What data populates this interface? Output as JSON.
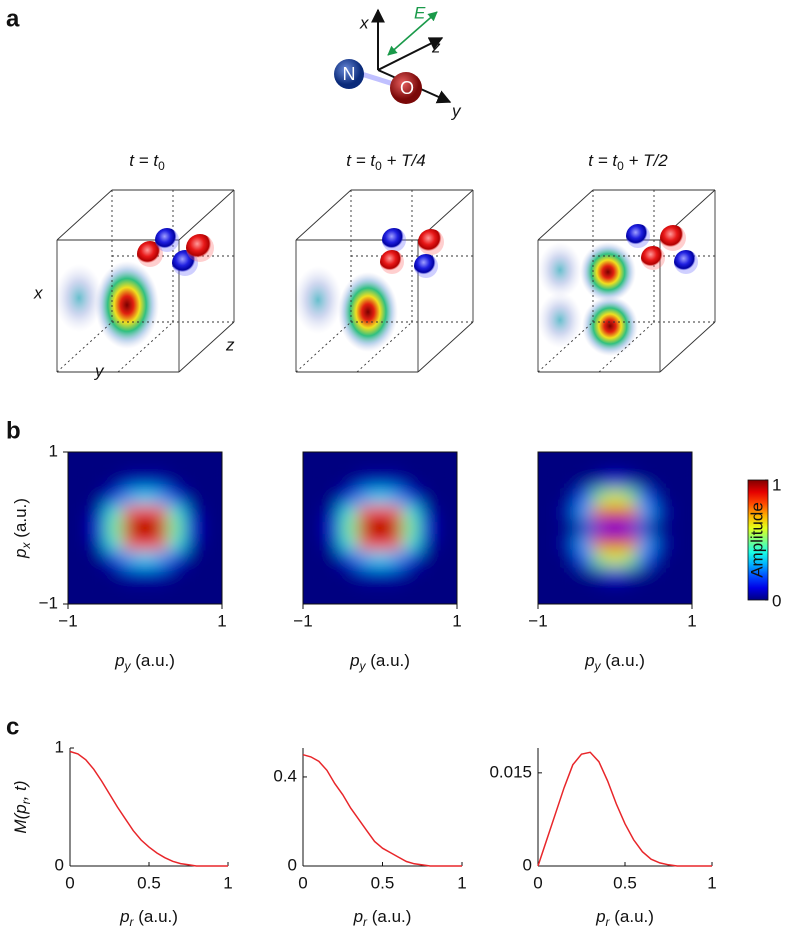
{
  "panel_labels": [
    "a",
    "b",
    "c"
  ],
  "molecule": {
    "atoms": [
      "N",
      "O"
    ],
    "axes": [
      "x",
      "z",
      "y"
    ],
    "field": "E"
  },
  "cubes": [
    {
      "pre": "t = t",
      "sub": "0",
      "post": ""
    },
    {
      "pre": "t = t",
      "sub": "0",
      "post": " + T/4"
    },
    {
      "pre": "t = t",
      "sub": "0",
      "post": " + T/2"
    }
  ],
  "cube_axes": [
    "x",
    "y",
    "z"
  ],
  "chart_data": [
    {
      "type": "heatmap",
      "colormap": "jet",
      "zlim": [
        0,
        1
      ],
      "x": [
        -0.8,
        -0.6,
        -0.4,
        -0.2,
        0,
        0.2,
        0.4,
        0.6,
        0.8
      ],
      "y": [
        0.8,
        0.6,
        0.4,
        0.2,
        0,
        -0.2,
        -0.4,
        -0.6,
        -0.8
      ],
      "z": [
        [
          0,
          0,
          0,
          0,
          0,
          0,
          0,
          0,
          0
        ],
        [
          0,
          0,
          0,
          0.05,
          0.05,
          0.05,
          0,
          0,
          0
        ],
        [
          0,
          0,
          0.1,
          0.3,
          0.35,
          0.3,
          0.1,
          0,
          0
        ],
        [
          0,
          0.05,
          0.4,
          0.8,
          0.85,
          0.8,
          0.4,
          0.05,
          0
        ],
        [
          0,
          0.1,
          0.5,
          0.95,
          1,
          0.95,
          0.5,
          0.1,
          0
        ],
        [
          0,
          0.05,
          0.4,
          0.8,
          0.85,
          0.8,
          0.4,
          0.05,
          0
        ],
        [
          0,
          0,
          0.1,
          0.3,
          0.35,
          0.3,
          0.1,
          0,
          0
        ],
        [
          0,
          0,
          0,
          0.05,
          0.05,
          0.05,
          0,
          0,
          0
        ],
        [
          0,
          0,
          0,
          0,
          0,
          0,
          0,
          0,
          0
        ]
      ],
      "xlim": [
        -1,
        1
      ],
      "ylim": [
        -1,
        1
      ],
      "xticks": [
        {
          "value": -1,
          "label": "−1"
        },
        1
      ],
      "yticks": [
        {
          "value": -1,
          "label": "−1"
        },
        1
      ],
      "xlabel": {
        "pre": "p",
        "sub": "y",
        "post": " (a.u.)"
      },
      "ylabel": {
        "pre": "p",
        "sub": "x",
        "post": " (a.u.)"
      }
    },
    {
      "type": "heatmap",
      "colormap": "jet",
      "zlim": [
        0,
        1
      ],
      "x": [
        -0.8,
        -0.6,
        -0.4,
        -0.2,
        0,
        0.2,
        0.4,
        0.6,
        0.8
      ],
      "y": [
        0.8,
        0.6,
        0.4,
        0.2,
        0,
        -0.2,
        -0.4,
        -0.6,
        -0.8
      ],
      "z": [
        [
          0,
          0,
          0,
          0,
          0,
          0,
          0,
          0,
          0
        ],
        [
          0,
          0,
          0,
          0.05,
          0.05,
          0.05,
          0,
          0,
          0
        ],
        [
          0,
          0,
          0.1,
          0.3,
          0.35,
          0.3,
          0.1,
          0,
          0
        ],
        [
          0,
          0.05,
          0.4,
          0.8,
          0.85,
          0.8,
          0.4,
          0.05,
          0
        ],
        [
          0,
          0.1,
          0.5,
          0.95,
          1,
          0.95,
          0.5,
          0.1,
          0
        ],
        [
          0,
          0.05,
          0.4,
          0.8,
          0.85,
          0.8,
          0.4,
          0.05,
          0
        ],
        [
          0,
          0,
          0.1,
          0.3,
          0.35,
          0.3,
          0.1,
          0,
          0
        ],
        [
          0,
          0,
          0,
          0.05,
          0.05,
          0.05,
          0,
          0,
          0
        ],
        [
          0,
          0,
          0,
          0,
          0,
          0,
          0,
          0,
          0
        ]
      ],
      "xlim": [
        -1,
        1
      ],
      "ylim": [
        -1,
        1
      ],
      "xticks": [
        {
          "value": -1,
          "label": "−1"
        },
        1
      ],
      "xlabel": {
        "pre": "p",
        "sub": "y",
        "post": " (a.u.)"
      }
    },
    {
      "type": "heatmap",
      "colormap": "jet",
      "zlim": [
        0,
        1
      ],
      "x": [
        -0.8,
        -0.6,
        -0.4,
        -0.2,
        0,
        0.2,
        0.4,
        0.6,
        0.8
      ],
      "y": [
        0.8,
        0.6,
        0.4,
        0.2,
        0,
        -0.2,
        -0.4,
        -0.6,
        -0.8
      ],
      "z": [
        [
          0,
          0,
          0,
          0,
          0,
          0,
          0,
          0,
          0
        ],
        [
          0,
          0,
          0,
          0.05,
          0.1,
          0.05,
          0,
          0,
          0
        ],
        [
          0,
          0,
          0.2,
          0.5,
          0.6,
          0.5,
          0.2,
          0,
          0
        ],
        [
          0,
          0.05,
          0.3,
          0.8,
          0.9,
          0.8,
          0.3,
          0.05,
          0
        ],
        [
          0,
          0,
          0.05,
          0.1,
          0.1,
          0.1,
          0.05,
          0,
          0
        ],
        [
          0,
          0.05,
          0.3,
          0.8,
          0.9,
          0.8,
          0.3,
          0.05,
          0
        ],
        [
          0,
          0,
          0.2,
          0.5,
          0.6,
          0.5,
          0.2,
          0,
          0
        ],
        [
          0,
          0,
          0,
          0.05,
          0.1,
          0.05,
          0,
          0,
          0
        ],
        [
          0,
          0,
          0,
          0,
          0,
          0,
          0,
          0,
          0
        ]
      ],
      "xlim": [
        -1,
        1
      ],
      "ylim": [
        -1,
        1
      ],
      "xticks": [
        {
          "value": -1,
          "label": "−1"
        },
        1
      ],
      "xlabel": {
        "pre": "p",
        "sub": "y",
        "post": " (a.u.)"
      },
      "colorbar": {
        "label": "Amplitude",
        "ticks": [
          0,
          1
        ]
      }
    },
    {
      "type": "line",
      "color": "#e8262a",
      "x": [
        0,
        0.05,
        0.1,
        0.15,
        0.2,
        0.25,
        0.3,
        0.35,
        0.4,
        0.45,
        0.5,
        0.55,
        0.6,
        0.65,
        0.7,
        0.75,
        0.8,
        0.85,
        0.9,
        0.95,
        1
      ],
      "values": [
        0.97,
        0.95,
        0.9,
        0.82,
        0.72,
        0.61,
        0.5,
        0.4,
        0.3,
        0.22,
        0.16,
        0.11,
        0.07,
        0.04,
        0.02,
        0.01,
        0,
        0,
        0,
        0,
        0
      ],
      "xlim": [
        0,
        1
      ],
      "ylim": [
        0,
        1
      ],
      "xticks": [
        0,
        0.5,
        1
      ],
      "yticks": [
        0,
        1
      ],
      "xlabel": {
        "pre": "p",
        "sub": "r",
        "post": " (a.u.)"
      },
      "ylabel": {
        "pre": "M(p",
        "sub": "r",
        "post": ", t)"
      }
    },
    {
      "type": "line",
      "color": "#e8262a",
      "x": [
        0,
        0.05,
        0.1,
        0.15,
        0.2,
        0.25,
        0.3,
        0.35,
        0.4,
        0.45,
        0.5,
        0.55,
        0.6,
        0.65,
        0.7,
        0.75,
        0.8,
        0.85,
        0.9,
        0.95,
        1
      ],
      "values": [
        0.5,
        0.49,
        0.47,
        0.43,
        0.37,
        0.32,
        0.26,
        0.21,
        0.16,
        0.11,
        0.08,
        0.06,
        0.04,
        0.02,
        0.01,
        0.005,
        0,
        0,
        0,
        0,
        0
      ],
      "xlim": [
        0,
        1
      ],
      "ylim": [
        0,
        0.53
      ],
      "xticks": [
        0,
        0.5,
        1
      ],
      "yticks": [
        0,
        0.4
      ],
      "xlabel": {
        "pre": "p",
        "sub": "r",
        "post": " (a.u.)"
      }
    },
    {
      "type": "line",
      "color": "#e8262a",
      "x": [
        0,
        0.05,
        0.1,
        0.15,
        0.2,
        0.25,
        0.3,
        0.35,
        0.4,
        0.45,
        0.5,
        0.55,
        0.6,
        0.65,
        0.7,
        0.75,
        0.8,
        0.85,
        0.9,
        0.95,
        1
      ],
      "values": [
        0,
        0.0042,
        0.0084,
        0.0126,
        0.0163,
        0.018,
        0.0183,
        0.0168,
        0.0137,
        0.01,
        0.0068,
        0.0042,
        0.0023,
        0.0011,
        0.0005,
        0.0002,
        0,
        0,
        0,
        0,
        0
      ],
      "xlim": [
        0,
        1
      ],
      "ylim": [
        0,
        0.019
      ],
      "xticks": [
        0,
        0.5,
        1
      ],
      "yticks": [
        0,
        0.015
      ],
      "xlabel": {
        "pre": "p",
        "sub": "r",
        "post": " (a.u.)"
      }
    }
  ]
}
